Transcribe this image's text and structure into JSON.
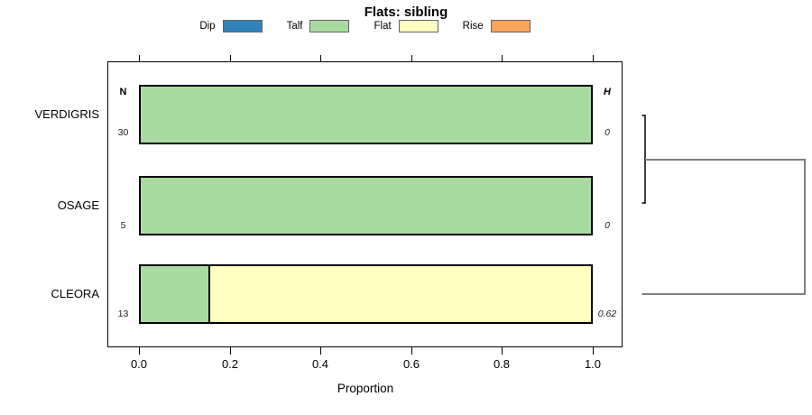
{
  "title": "Flats: sibling",
  "legend": {
    "items": [
      {
        "label": "Dip",
        "color": "#3182BD"
      },
      {
        "label": "Talf",
        "color": "#A9DBA0"
      },
      {
        "label": "Flat",
        "color": "#FFFFC0"
      },
      {
        "label": "Rise",
        "color": "#F9A45C"
      }
    ]
  },
  "panel": {
    "n_header": "N",
    "h_header": "H"
  },
  "rows": [
    {
      "label": "VERDIGRIS",
      "n": "30",
      "h": "0",
      "segments": [
        {
          "category": "Talf",
          "value": 1
        }
      ]
    },
    {
      "label": "OSAGE",
      "n": "5",
      "h": "0",
      "segments": [
        {
          "category": "Talf",
          "value": 1
        }
      ]
    },
    {
      "label": "CLEORA",
      "n": "13",
      "h": "0.62",
      "segments": [
        {
          "category": "Talf",
          "value": 0.154
        },
        {
          "category": "Flat",
          "value": 0.846
        }
      ]
    }
  ],
  "x_axis": {
    "label": "Proportion",
    "ticks": [
      "0.0",
      "0.2",
      "0.4",
      "0.6",
      "0.8",
      "1.0"
    ],
    "range": [
      0,
      1
    ]
  },
  "chart_data": {
    "type": "bar",
    "orientation": "horizontal",
    "stacked": true,
    "title": "Flats: sibling",
    "xlabel": "Proportion",
    "xlim": [
      0,
      1
    ],
    "xticks": [
      0,
      0.2,
      0.4,
      0.6,
      0.8,
      1.0
    ],
    "grid": false,
    "legend_position": "top",
    "legend_entries": [
      "Dip",
      "Talf",
      "Flat",
      "Rise"
    ],
    "categories": [
      "VERDIGRIS",
      "OSAGE",
      "CLEORA"
    ],
    "series": [
      {
        "name": "Dip",
        "color": "#3182BD",
        "values": [
          0,
          0,
          0
        ]
      },
      {
        "name": "Talf",
        "color": "#A9DBA0",
        "values": [
          1,
          1,
          0.154
        ]
      },
      {
        "name": "Flat",
        "color": "#FFFFC0",
        "values": [
          0,
          0,
          0.846
        ]
      },
      {
        "name": "Rise",
        "color": "#F9A45C",
        "values": [
          0,
          0,
          0
        ]
      }
    ],
    "row_counts": {
      "header": "N",
      "values": [
        30,
        5,
        13
      ]
    },
    "row_entropy": {
      "header": "H",
      "values": [
        0,
        0,
        0.62
      ]
    },
    "right_margin_dendrogram": {
      "description": "Cluster tree in right margin: VERDIGRIS and OSAGE merge first at height 0, then that cluster merges with CLEORA at the root.",
      "merges": [
        [
          "VERDIGRIS",
          "OSAGE"
        ],
        [
          "VERDIGRIS+OSAGE",
          "CLEORA"
        ]
      ]
    }
  }
}
